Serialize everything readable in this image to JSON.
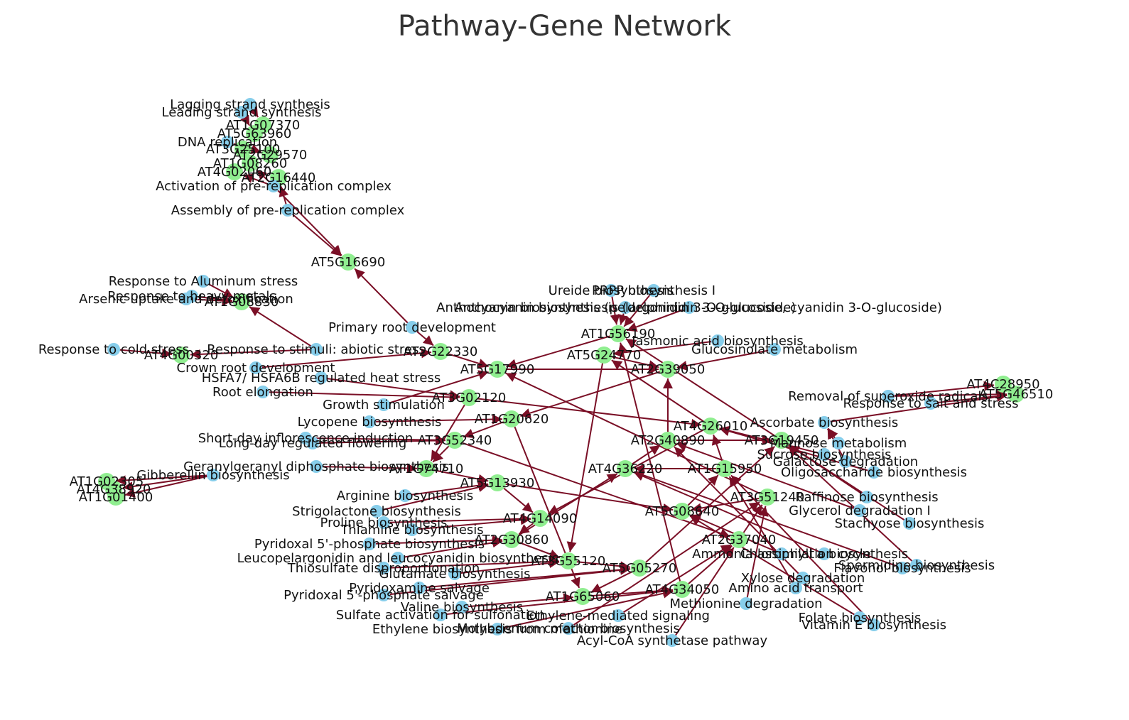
{
  "title": "Pathway-Gene Network",
  "colors": {
    "pathway": "#87ceeb",
    "gene": "#90ee90",
    "edge": "#7a0f26",
    "text": "#111111"
  },
  "nodes": [
    {
      "id": "n1",
      "type": "pathway",
      "label": "Lagging strand synthesis"
    },
    {
      "id": "n2",
      "type": "pathway",
      "label": "Leading strand synthesis"
    },
    {
      "id": "n3",
      "type": "gene",
      "label": "AT1G07370"
    },
    {
      "id": "n4",
      "type": "gene",
      "label": "AT5G63960"
    },
    {
      "id": "n5",
      "type": "pathway",
      "label": "DNA replication"
    },
    {
      "id": "n6",
      "type": "gene",
      "label": "AT3G25100"
    },
    {
      "id": "n7",
      "type": "gene",
      "label": "AT2G29570"
    },
    {
      "id": "n8",
      "type": "gene",
      "label": "AT1G08260"
    },
    {
      "id": "n9",
      "type": "gene",
      "label": "AT4G02060"
    },
    {
      "id": "n10",
      "type": "gene",
      "label": "AT2G16440"
    },
    {
      "id": "n11",
      "type": "pathway",
      "label": "Activation of pre-replication complex"
    },
    {
      "id": "n12",
      "type": "pathway",
      "label": "Assembly of pre-replication complex"
    },
    {
      "id": "n13",
      "type": "gene",
      "label": "AT5G16690"
    },
    {
      "id": "n14",
      "type": "pathway",
      "label": "Response to Aluminum stress"
    },
    {
      "id": "n15",
      "type": "pathway",
      "label": "Response to heavy metals"
    },
    {
      "id": "n16",
      "type": "pathway",
      "label": "Arsenic uptake and detoxification"
    },
    {
      "id": "n17",
      "type": "gene",
      "label": "AT1G08830"
    },
    {
      "id": "n18",
      "type": "pathway",
      "label": "Response to cold stress"
    },
    {
      "id": "n19",
      "type": "pathway",
      "label": "Response to stimuli: abiotic stress"
    },
    {
      "id": "n20",
      "type": "gene",
      "label": "AT4G00320"
    },
    {
      "id": "n21",
      "type": "pathway",
      "label": "Primary root development"
    },
    {
      "id": "n22",
      "type": "pathway",
      "label": "Crown root development"
    },
    {
      "id": "n23",
      "type": "pathway",
      "label": "HSFA7/ HSFA6B regulated heat stress"
    },
    {
      "id": "n24",
      "type": "pathway",
      "label": "Root elongation"
    },
    {
      "id": "n25",
      "type": "pathway",
      "label": "Ureide biosynthesis"
    },
    {
      "id": "n26",
      "type": "pathway",
      "label": "PRPP biosynthesis I"
    },
    {
      "id": "n27",
      "type": "pathway",
      "label": "Anthocyanin biosynthesis (delphinidin 3-O-glucoside)"
    },
    {
      "id": "n28",
      "type": "pathway",
      "label": "Anthocyanin biosynthesis (pelargonidin 3-O-glucoside, cyanidin 3-O-glucoside)"
    },
    {
      "id": "n29",
      "type": "pathway",
      "label": "Jasmonic acid biosynthesis"
    },
    {
      "id": "n30",
      "type": "pathway",
      "label": "Glucosinolate metabolism"
    },
    {
      "id": "n31",
      "type": "pathway",
      "label": "Growth stimulation"
    },
    {
      "id": "n32",
      "type": "pathway",
      "label": "Lycopene biosynthesis"
    },
    {
      "id": "n33",
      "type": "pathway",
      "label": "Short-day inflorescence induction"
    },
    {
      "id": "n34",
      "type": "pathway",
      "label": "Long-day regulated flowering"
    },
    {
      "id": "n35",
      "type": "pathway",
      "label": "Geranylgeranyl diphosphate biosynthesis"
    },
    {
      "id": "n36",
      "type": "pathway",
      "label": "Gibberellin biosynthesis"
    },
    {
      "id": "n37",
      "type": "gene",
      "label": "AT1G01400"
    },
    {
      "id": "n38",
      "type": "gene",
      "label": "AT1G02305"
    },
    {
      "id": "n39",
      "type": "gene",
      "label": "AT4G38920"
    },
    {
      "id": "n40",
      "type": "pathway",
      "label": "Arginine biosynthesis"
    },
    {
      "id": "n41",
      "type": "pathway",
      "label": "Strigolactone biosynthesis"
    },
    {
      "id": "n42",
      "type": "pathway",
      "label": "Proline biosynthesis"
    },
    {
      "id": "n43",
      "type": "pathway",
      "label": "Thiamine biosynthesis"
    },
    {
      "id": "n44",
      "type": "pathway",
      "label": "Pyridoxal 5'-phosphate biosynthesis"
    },
    {
      "id": "n45",
      "type": "pathway",
      "label": "Leucopelargonidin and leucocyanidin biosynthesis"
    },
    {
      "id": "n46",
      "type": "pathway",
      "label": "Thiosulfate disproportionation"
    },
    {
      "id": "n47",
      "type": "pathway",
      "label": "Glutamate biosynthesis"
    },
    {
      "id": "n48",
      "type": "pathway",
      "label": "Pyridoxamine salvage"
    },
    {
      "id": "n49",
      "type": "pathway",
      "label": "Pyridoxal 5'-phosphate salvage"
    },
    {
      "id": "n50",
      "type": "pathway",
      "label": "Valine biosynthesis"
    },
    {
      "id": "n51",
      "type": "pathway",
      "label": "Sulfate activation for sulfonation"
    },
    {
      "id": "n52",
      "type": "pathway",
      "label": "Ethylene biosynthesis from methionine"
    },
    {
      "id": "n53",
      "type": "pathway",
      "label": "Ethylene-mediated signaling"
    },
    {
      "id": "n54",
      "type": "pathway",
      "label": "Acyl-CoA synthetase pathway"
    },
    {
      "id": "n55",
      "type": "pathway",
      "label": "Molybdenum cofactor biosynthesis"
    },
    {
      "id": "n56",
      "type": "pathway",
      "label": "Methionine degradation"
    },
    {
      "id": "n57",
      "type": "pathway",
      "label": "Ammonia assimilation cycle"
    },
    {
      "id": "n58",
      "type": "pathway",
      "label": "Folate biosynthesis"
    },
    {
      "id": "n59",
      "type": "pathway",
      "label": "Amino acid transport"
    },
    {
      "id": "n60",
      "type": "pathway",
      "label": "Vitamin E biosynthesis"
    },
    {
      "id": "n61",
      "type": "pathway",
      "label": "Chlorophyll a biosynthesis"
    },
    {
      "id": "n62",
      "type": "pathway",
      "label": "Flavonol biosynthesis"
    },
    {
      "id": "n63",
      "type": "pathway",
      "label": "Xylose degradation"
    },
    {
      "id": "n64",
      "type": "pathway",
      "label": "Glycerol degradation I"
    },
    {
      "id": "n65",
      "type": "pathway",
      "label": "Stachyose biosynthesis"
    },
    {
      "id": "n66",
      "type": "pathway",
      "label": "Raffinose biosynthesis"
    },
    {
      "id": "n67",
      "type": "pathway",
      "label": "Spermidine biosynthesis"
    },
    {
      "id": "n68",
      "type": "pathway",
      "label": "Oligosaccharide biosynthesis"
    },
    {
      "id": "n69",
      "type": "pathway",
      "label": "Sucrose biosynthesis"
    },
    {
      "id": "n70",
      "type": "pathway",
      "label": "Mannose metabolism"
    },
    {
      "id": "n71",
      "type": "pathway",
      "label": "Galactose degradation"
    },
    {
      "id": "n72",
      "type": "pathway",
      "label": "Removal of superoxide radicals"
    },
    {
      "id": "n73",
      "type": "gene",
      "label": "AT4C28950"
    },
    {
      "id": "n74",
      "type": "gene",
      "label": "AT5G46510"
    },
    {
      "id": "n75",
      "type": "pathway",
      "label": "Response to salt and stress"
    },
    {
      "id": "n76",
      "type": "pathway",
      "label": "Ascorbate biosynthesis"
    },
    {
      "id": "n77",
      "type": "gene",
      "label": "AT1G56190"
    },
    {
      "id": "n78",
      "type": "gene",
      "label": "AT2G22330"
    },
    {
      "id": "n79",
      "type": "gene",
      "label": "AT5G17990"
    },
    {
      "id": "n80",
      "type": "gene",
      "label": "AT3G02120"
    },
    {
      "id": "n81",
      "type": "gene",
      "label": "AT4G26010"
    },
    {
      "id": "n82",
      "type": "gene",
      "label": "AT5G24770"
    },
    {
      "id": "n83",
      "type": "gene",
      "label": "AT2G39050"
    },
    {
      "id": "n84",
      "type": "gene",
      "label": "AT1G20620"
    },
    {
      "id": "n85",
      "type": "gene",
      "label": "AT3G52340"
    },
    {
      "id": "n86",
      "type": "gene",
      "label": "AT1G74710"
    },
    {
      "id": "n87",
      "type": "gene",
      "label": "AT5G13930"
    },
    {
      "id": "n88",
      "type": "gene",
      "label": "AT4G14090"
    },
    {
      "id": "n89",
      "type": "gene",
      "label": "AT2G30860"
    },
    {
      "id": "n90",
      "type": "gene",
      "label": "AT3G55120"
    },
    {
      "id": "n91",
      "type": "gene",
      "label": "AT5G05270"
    },
    {
      "id": "n92",
      "type": "gene",
      "label": "AT1G65060"
    },
    {
      "id": "n93",
      "type": "gene",
      "label": "AT4G34050"
    },
    {
      "id": "n94",
      "type": "gene",
      "label": "AT2G37040"
    },
    {
      "id": "n95",
      "type": "gene",
      "label": "AT3G51240"
    },
    {
      "id": "n96",
      "type": "gene",
      "label": "AT5G08640"
    },
    {
      "id": "n97",
      "type": "gene",
      "label": "AT1G15950"
    },
    {
      "id": "n98",
      "type": "gene",
      "label": "AT4G36220"
    },
    {
      "id": "n99",
      "type": "gene",
      "label": "AT2G40890"
    },
    {
      "id": "n100",
      "type": "gene",
      "label": "AT3G19450"
    }
  ],
  "edges": [
    [
      "n1",
      "n3"
    ],
    [
      "n2",
      "n4"
    ],
    [
      "n5",
      "n6"
    ],
    [
      "n5",
      "n7"
    ],
    [
      "n11",
      "n8"
    ],
    [
      "n11",
      "n9"
    ],
    [
      "n12",
      "n10"
    ],
    [
      "n12",
      "n13"
    ],
    [
      "n11",
      "n13"
    ],
    [
      "n21",
      "n13"
    ],
    [
      "n14",
      "n17"
    ],
    [
      "n15",
      "n17"
    ],
    [
      "n16",
      "n17"
    ],
    [
      "n18",
      "n20"
    ],
    [
      "n19",
      "n20"
    ],
    [
      "n19",
      "n17"
    ],
    [
      "n21",
      "n78"
    ],
    [
      "n22",
      "n78"
    ],
    [
      "n23",
      "n80"
    ],
    [
      "n24",
      "n80"
    ],
    [
      "n31",
      "n79"
    ],
    [
      "n25",
      "n77"
    ],
    [
      "n26",
      "n77"
    ],
    [
      "n27",
      "n77"
    ],
    [
      "n28",
      "n77"
    ],
    [
      "n29",
      "n82"
    ],
    [
      "n30",
      "n83"
    ],
    [
      "n32",
      "n84"
    ],
    [
      "n33",
      "n85"
    ],
    [
      "n34",
      "n85"
    ],
    [
      "n35",
      "n86"
    ],
    [
      "n36",
      "n37"
    ],
    [
      "n36",
      "n38"
    ],
    [
      "n36",
      "n39"
    ],
    [
      "n40",
      "n87"
    ],
    [
      "n41",
      "n87"
    ],
    [
      "n42",
      "n88"
    ],
    [
      "n43",
      "n88"
    ],
    [
      "n44",
      "n89"
    ],
    [
      "n45",
      "n89"
    ],
    [
      "n46",
      "n90"
    ],
    [
      "n47",
      "n90"
    ],
    [
      "n48",
      "n91"
    ],
    [
      "n49",
      "n91"
    ],
    [
      "n50",
      "n92"
    ],
    [
      "n51",
      "n93"
    ],
    [
      "n52",
      "n93"
    ],
    [
      "n53",
      "n94"
    ],
    [
      "n54",
      "n94"
    ],
    [
      "n55",
      "n95"
    ],
    [
      "n56",
      "n95"
    ],
    [
      "n57",
      "n96"
    ],
    [
      "n58",
      "n96"
    ],
    [
      "n59",
      "n97"
    ],
    [
      "n60",
      "n97"
    ],
    [
      "n61",
      "n98"
    ],
    [
      "n62",
      "n98"
    ],
    [
      "n63",
      "n99"
    ],
    [
      "n64",
      "n99"
    ],
    [
      "n65",
      "n100"
    ],
    [
      "n66",
      "n100"
    ],
    [
      "n67",
      "n100"
    ],
    [
      "n68",
      "n81"
    ],
    [
      "n69",
      "n81"
    ],
    [
      "n70",
      "n76"
    ],
    [
      "n71",
      "n76"
    ],
    [
      "n72",
      "n73"
    ],
    [
      "n72",
      "n74"
    ],
    [
      "n75",
      "n74"
    ],
    [
      "n76",
      "n74"
    ],
    [
      "n77",
      "n79"
    ],
    [
      "n78",
      "n79"
    ],
    [
      "n80",
      "n81"
    ],
    [
      "n81",
      "n82"
    ],
    [
      "n82",
      "n83"
    ],
    [
      "n83",
      "n84"
    ],
    [
      "n84",
      "n85"
    ],
    [
      "n85",
      "n86"
    ],
    [
      "n86",
      "n87"
    ],
    [
      "n87",
      "n88"
    ],
    [
      "n88",
      "n89"
    ],
    [
      "n89",
      "n90"
    ],
    [
      "n90",
      "n91"
    ],
    [
      "n91",
      "n92"
    ],
    [
      "n92",
      "n93"
    ],
    [
      "n93",
      "n94"
    ],
    [
      "n94",
      "n95"
    ],
    [
      "n95",
      "n96"
    ],
    [
      "n96",
      "n97"
    ],
    [
      "n97",
      "n98"
    ],
    [
      "n98",
      "n99"
    ],
    [
      "n99",
      "n100"
    ],
    [
      "n100",
      "n77"
    ],
    [
      "n79",
      "n83"
    ],
    [
      "n80",
      "n86"
    ],
    [
      "n81",
      "n88"
    ],
    [
      "n82",
      "n90"
    ],
    [
      "n84",
      "n92"
    ],
    [
      "n85",
      "n94"
    ],
    [
      "n87",
      "n96"
    ],
    [
      "n89",
      "n98"
    ],
    [
      "n91",
      "n100"
    ],
    [
      "n93",
      "n77"
    ],
    [
      "n95",
      "n79"
    ],
    [
      "n97",
      "n81"
    ],
    [
      "n99",
      "n83"
    ]
  ]
}
